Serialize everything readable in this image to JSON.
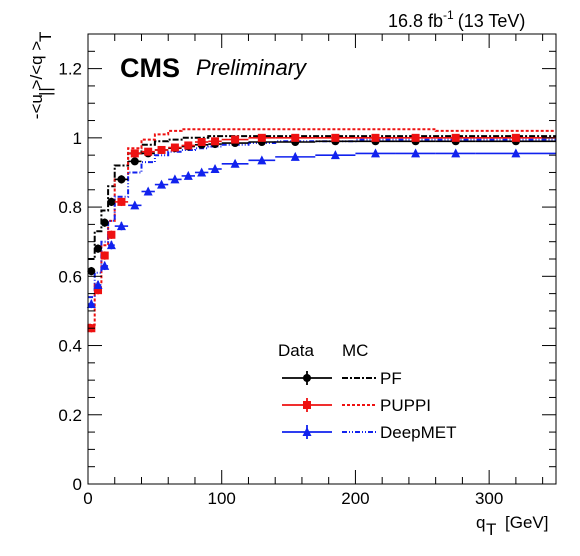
{
  "header": {
    "lumi_value": "16.8 fb",
    "lumi_exp": "-1",
    "energy": "(13 TeV)",
    "experiment": "CMS",
    "status": "Preliminary"
  },
  "axes": {
    "x_title_main": "q",
    "x_title_sub": "T",
    "x_title_unit": "[GeV]",
    "y_title": "-<u  >/<q >",
    "y_sub_par": "||",
    "y_sub_t": "T"
  },
  "legend": {
    "header_data": "Data",
    "header_mc": "MC",
    "entries": [
      {
        "label": "PF",
        "color": "#000000"
      },
      {
        "label": "PUPPI",
        "color": "#ee1111"
      },
      {
        "label": "DeepMET",
        "color": "#1122ee"
      }
    ]
  },
  "chart_data": {
    "type": "scatter",
    "xlim": [
      0,
      350
    ],
    "ylim": [
      0,
      1.3
    ],
    "x_ticks": [
      0,
      100,
      200,
      300
    ],
    "y_ticks": [
      0,
      0.2,
      0.4,
      0.6,
      0.8,
      1,
      1.2
    ],
    "x_tick_labels": [
      "0",
      "100",
      "200",
      "300"
    ],
    "y_tick_labels": [
      "0",
      "0.2",
      "0.4",
      "0.6",
      "0.8",
      "1",
      "1.2"
    ],
    "bin_edges": [
      0,
      5,
      10,
      15,
      20,
      30,
      40,
      50,
      60,
      70,
      80,
      90,
      100,
      120,
      140,
      170,
      200,
      230,
      260,
      290,
      350
    ],
    "series": [
      {
        "name": "PF",
        "color": "#000000",
        "marker": "circle",
        "data": [
          0.615,
          0.68,
          0.755,
          0.815,
          0.88,
          0.932,
          0.955,
          0.965,
          0.97,
          0.975,
          0.98,
          0.982,
          0.985,
          0.988,
          0.988,
          0.99,
          0.99,
          0.99,
          0.99,
          0.99
        ],
        "mc": [
          0.65,
          0.73,
          0.79,
          0.86,
          0.92,
          0.955,
          0.98,
          0.99,
          0.995,
          1.0,
          1.0,
          1.005,
          1.005,
          1.005,
          1.005,
          1.005,
          1.005,
          1.005,
          1.005,
          1.005
        ]
      },
      {
        "name": "PUPPI",
        "color": "#ee1111",
        "marker": "square",
        "data": [
          0.45,
          0.56,
          0.66,
          0.72,
          0.815,
          0.955,
          0.96,
          0.965,
          0.972,
          0.978,
          0.988,
          0.99,
          0.995,
          1.0,
          1.0,
          1.0,
          1.0,
          1.0,
          1.0,
          1.0
        ],
        "mc": [
          0.46,
          0.58,
          0.69,
          0.76,
          0.88,
          0.97,
          0.995,
          1.01,
          1.02,
          1.025,
          1.025,
          1.025,
          1.025,
          1.025,
          1.025,
          1.025,
          1.025,
          1.025,
          1.02,
          1.02
        ]
      },
      {
        "name": "DeepMET",
        "color": "#1122ee",
        "marker": "triangle",
        "data": [
          0.52,
          0.575,
          0.63,
          0.69,
          0.745,
          0.805,
          0.845,
          0.865,
          0.88,
          0.89,
          0.9,
          0.91,
          0.925,
          0.935,
          0.945,
          0.95,
          0.955,
          0.955,
          0.955,
          0.955
        ],
        "mc": [
          0.54,
          0.61,
          0.7,
          0.76,
          0.83,
          0.9,
          0.93,
          0.95,
          0.96,
          0.965,
          0.97,
          0.975,
          0.98,
          0.985,
          0.99,
          0.99,
          0.995,
          0.995,
          0.995,
          0.995
        ]
      }
    ]
  }
}
